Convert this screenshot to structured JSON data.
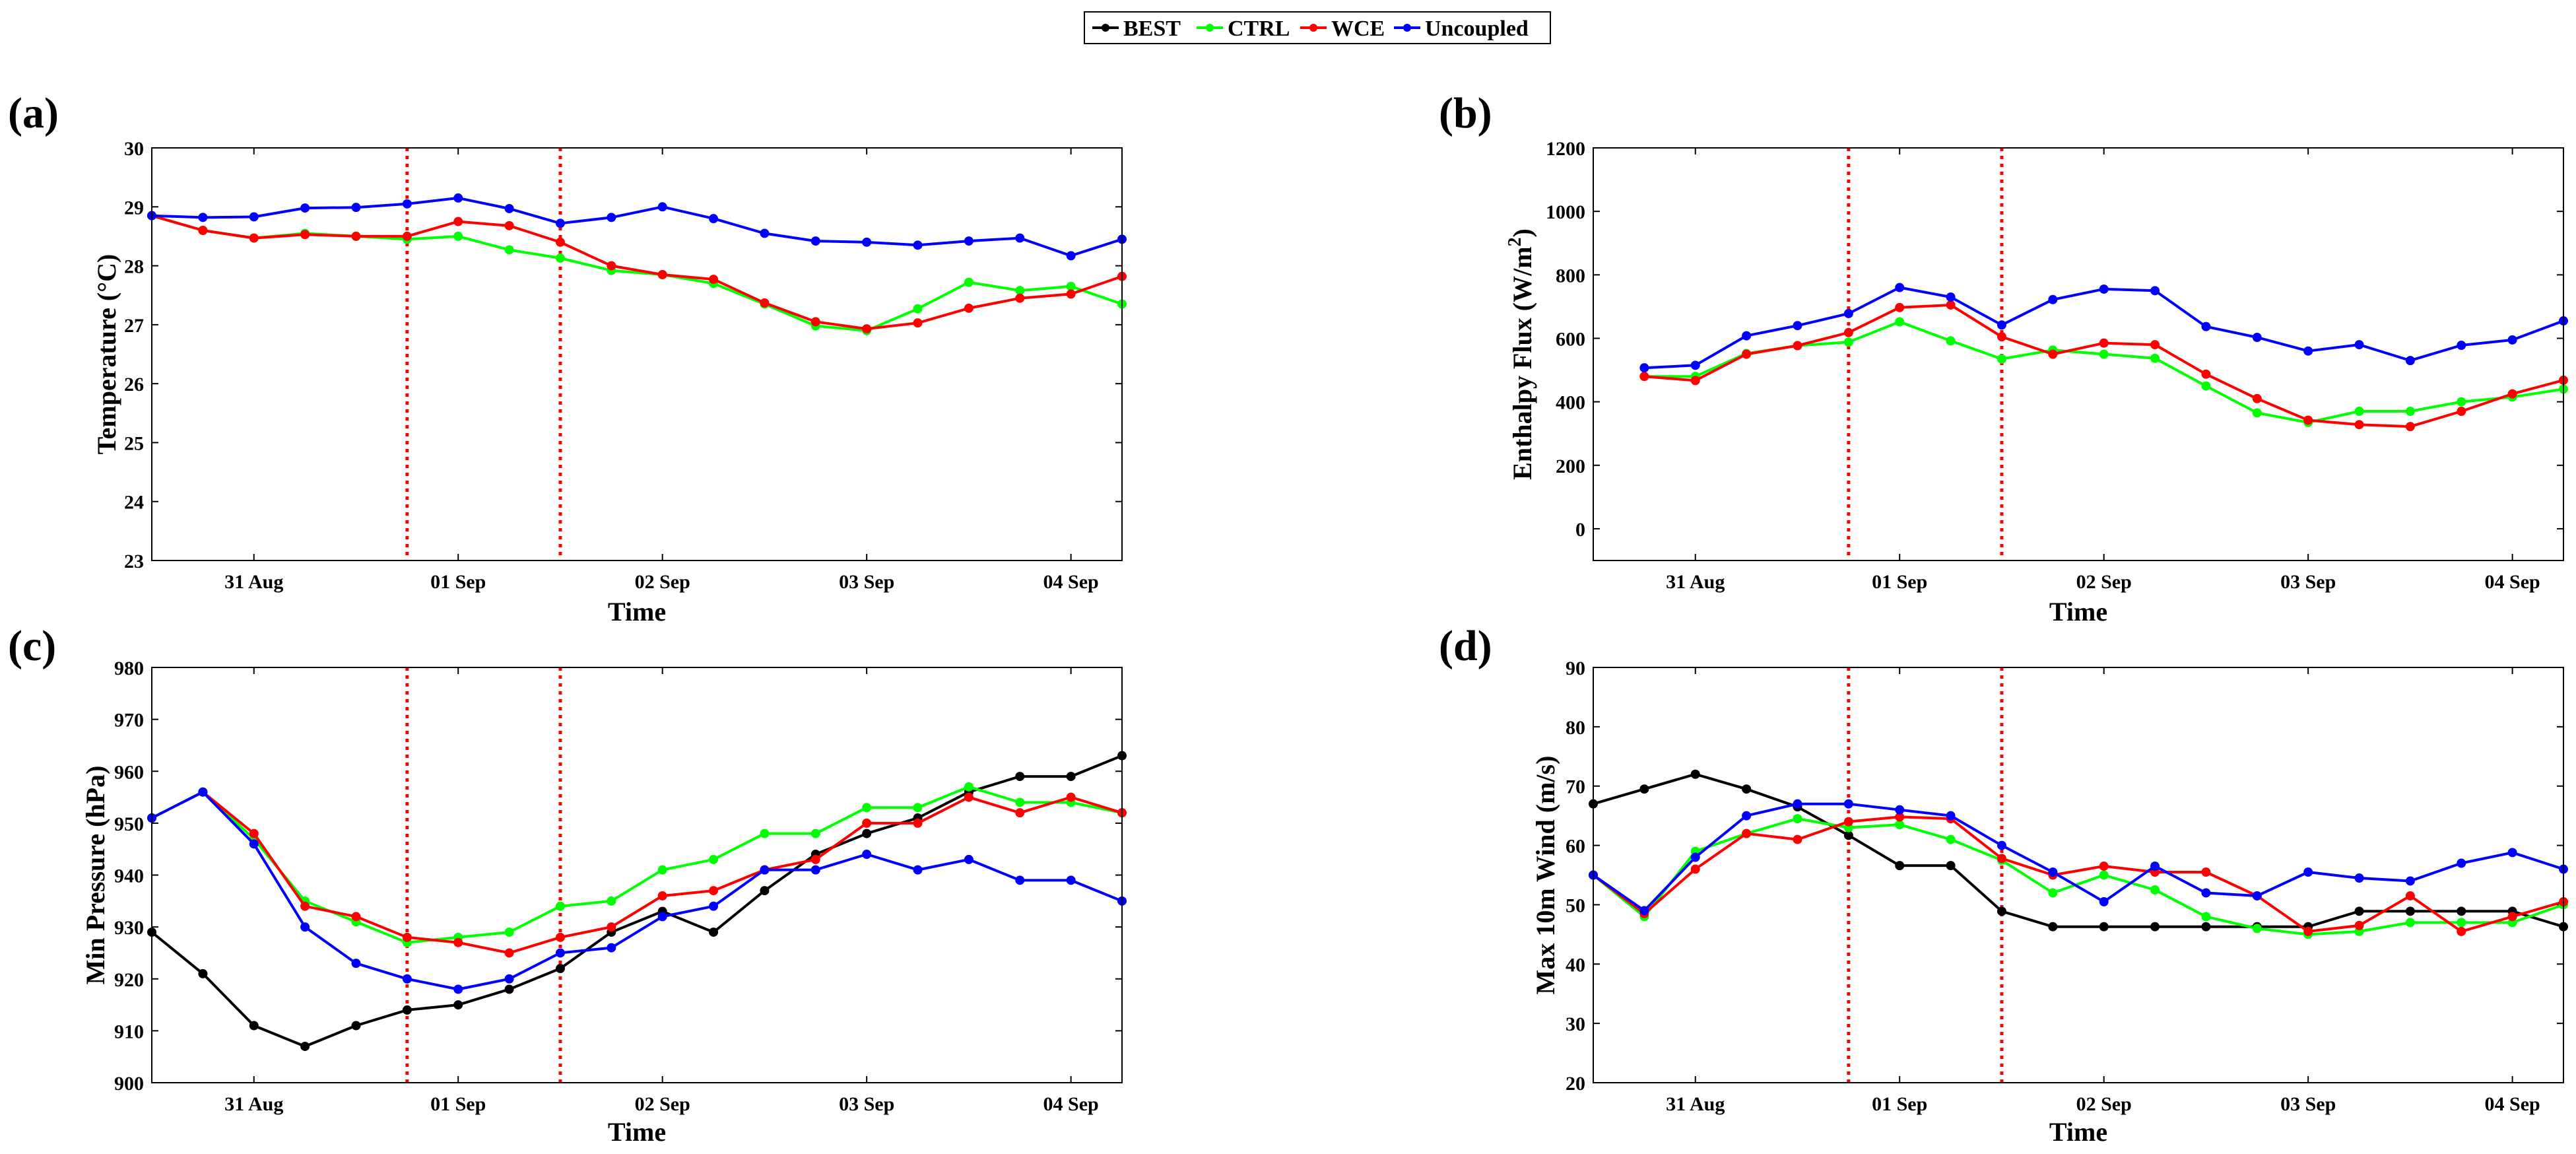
{
  "legend": {
    "entries": [
      {
        "name": "BEST",
        "color": "#000000"
      },
      {
        "name": "CTRL",
        "color": "#00ff00"
      },
      {
        "name": "WCE",
        "color": "#ff0000"
      },
      {
        "name": "Uncoupled",
        "color": "#0000ff"
      }
    ]
  },
  "chart_data": [
    {
      "type": "line",
      "panel_label": "(a)",
      "xlabel": "Time",
      "ylabel": "Temperature (°C)",
      "xlim": [
        -0.5,
        4.25
      ],
      "ylim": [
        23,
        30
      ],
      "yticks": [
        23,
        24,
        25,
        26,
        27,
        28,
        29,
        30
      ],
      "xticks": [
        {
          "value": 0,
          "label": "31 Aug"
        },
        {
          "value": 1,
          "label": "01 Sep"
        },
        {
          "value": 2,
          "label": "02 Sep"
        },
        {
          "value": 3,
          "label": "03 Sep"
        },
        {
          "value": 4,
          "label": "04 Sep"
        }
      ],
      "vlines": [
        0.75,
        1.5
      ],
      "x": [
        -0.5,
        -0.25,
        0,
        0.25,
        0.5,
        0.75,
        1,
        1.25,
        1.5,
        1.75,
        2,
        2.25,
        2.5,
        2.75,
        3,
        3.25,
        3.5,
        3.75,
        4,
        4.25
      ],
      "series": [
        {
          "name": "CTRL",
          "color": "#00ff00",
          "values": [
            28.85,
            28.6,
            28.47,
            28.55,
            28.5,
            28.45,
            28.5,
            28.27,
            28.13,
            27.92,
            27.85,
            27.7,
            27.35,
            26.98,
            26.9,
            27.27,
            27.72,
            27.58,
            27.65,
            27.35
          ]
        },
        {
          "name": "WCE",
          "color": "#ff0000",
          "values": [
            28.85,
            28.6,
            28.47,
            28.53,
            28.5,
            28.5,
            28.75,
            28.68,
            28.4,
            28.0,
            27.85,
            27.77,
            27.37,
            27.05,
            26.93,
            27.03,
            27.28,
            27.45,
            27.52,
            27.82
          ]
        },
        {
          "name": "Uncoupled",
          "color": "#0000ff",
          "values": [
            28.85,
            28.82,
            28.83,
            28.98,
            28.99,
            29.05,
            29.15,
            28.97,
            28.72,
            28.82,
            29.0,
            28.8,
            28.55,
            28.42,
            28.4,
            28.35,
            28.42,
            28.47,
            28.17,
            28.45
          ]
        }
      ]
    },
    {
      "type": "line",
      "panel_label": "(b)",
      "xlabel": "Time",
      "ylabel": "Enthalpy Flux (W/m",
      "ylabel_sup": "2",
      "ylabel_end": ")",
      "xlim": [
        -0.5,
        4.25
      ],
      "ylim": [
        -100,
        1200
      ],
      "yticks": [
        0,
        200,
        400,
        600,
        800,
        1000,
        1200
      ],
      "xticks": [
        {
          "value": 0,
          "label": "31 Aug"
        },
        {
          "value": 1,
          "label": "01 Sep"
        },
        {
          "value": 2,
          "label": "02 Sep"
        },
        {
          "value": 3,
          "label": "03 Sep"
        },
        {
          "value": 4,
          "label": "04 Sep"
        }
      ],
      "vlines": [
        0.75,
        1.5
      ],
      "x": [
        -0.25,
        0,
        0.25,
        0.5,
        0.75,
        1,
        1.25,
        1.5,
        1.75,
        2,
        2.25,
        2.5,
        2.75,
        3,
        3.25,
        3.5,
        3.75,
        4,
        4.25
      ],
      "series": [
        {
          "name": "CTRL",
          "color": "#00ff00",
          "values": [
            480,
            480,
            552,
            577,
            588,
            652,
            592,
            535,
            563,
            550,
            537,
            450,
            365,
            335,
            370,
            370,
            400,
            415,
            440
          ]
        },
        {
          "name": "WCE",
          "color": "#ff0000",
          "values": [
            480,
            467,
            550,
            577,
            618,
            697,
            705,
            605,
            550,
            585,
            580,
            487,
            410,
            342,
            328,
            322,
            370,
            425,
            468
          ]
        },
        {
          "name": "Uncoupled",
          "color": "#0000ff",
          "values": [
            507,
            515,
            608,
            640,
            678,
            760,
            730,
            642,
            722,
            755,
            750,
            637,
            603,
            560,
            580,
            530,
            578,
            595,
            655
          ]
        }
      ]
    },
    {
      "type": "line",
      "panel_label": "(c)",
      "xlabel": "Time",
      "ylabel": "Min Pressure (hPa)",
      "xlim": [
        -0.5,
        4.25
      ],
      "ylim": [
        900,
        980
      ],
      "yticks": [
        900,
        910,
        920,
        930,
        940,
        950,
        960,
        970,
        980
      ],
      "xticks": [
        {
          "value": 0,
          "label": "31 Aug"
        },
        {
          "value": 1,
          "label": "01 Sep"
        },
        {
          "value": 2,
          "label": "02 Sep"
        },
        {
          "value": 3,
          "label": "03 Sep"
        },
        {
          "value": 4,
          "label": "04 Sep"
        }
      ],
      "vlines": [
        0.75,
        1.5
      ],
      "x": [
        -0.5,
        -0.25,
        0,
        0.25,
        0.5,
        0.75,
        1,
        1.25,
        1.5,
        1.75,
        2,
        2.25,
        2.5,
        2.75,
        3,
        3.25,
        3.5,
        3.75,
        4,
        4.25
      ],
      "series": [
        {
          "name": "BEST",
          "color": "#000000",
          "values": [
            929,
            921,
            911,
            907,
            911,
            914,
            915,
            918,
            922,
            929,
            933,
            929,
            937,
            944,
            948,
            951,
            956,
            959,
            959,
            963
          ]
        },
        {
          "name": "CTRL",
          "color": "#00ff00",
          "values": [
            951,
            956,
            947,
            935,
            931,
            927,
            928,
            929,
            934,
            935,
            941,
            943,
            948,
            948,
            953,
            953,
            957,
            954,
            954,
            952
          ]
        },
        {
          "name": "WCE",
          "color": "#ff0000",
          "values": [
            951,
            956,
            948,
            934,
            932,
            928,
            927,
            925,
            928,
            930,
            936,
            937,
            941,
            943,
            950,
            950,
            955,
            952,
            955,
            952
          ]
        },
        {
          "name": "Uncoupled",
          "color": "#0000ff",
          "values": [
            951,
            956,
            946,
            930,
            923,
            920,
            918,
            920,
            925,
            926,
            932,
            934,
            941,
            941,
            944,
            941,
            943,
            939,
            939,
            935
          ]
        }
      ]
    },
    {
      "type": "line",
      "panel_label": "(d)",
      "xlabel": "Time",
      "ylabel": "Max 10m Wind (m/s)",
      "xlim": [
        -0.5,
        4.25
      ],
      "ylim": [
        20,
        90
      ],
      "yticks": [
        20,
        30,
        40,
        50,
        60,
        70,
        80,
        90
      ],
      "xticks": [
        {
          "value": 0,
          "label": "31 Aug"
        },
        {
          "value": 1,
          "label": "01 Sep"
        },
        {
          "value": 2,
          "label": "02 Sep"
        },
        {
          "value": 3,
          "label": "03 Sep"
        },
        {
          "value": 4,
          "label": "04 Sep"
        }
      ],
      "vlines": [
        0.75,
        1.5
      ],
      "x": [
        -0.5,
        -0.25,
        0,
        0.25,
        0.5,
        0.75,
        1,
        1.25,
        1.5,
        1.75,
        2,
        2.25,
        2.5,
        2.75,
        3,
        3.25,
        3.5,
        3.75,
        4,
        4.25
      ],
      "series": [
        {
          "name": "BEST",
          "color": "#000000",
          "values": [
            67,
            69.5,
            72,
            69.5,
            66.5,
            61.7,
            56.6,
            56.6,
            48.9,
            46.3,
            46.3,
            46.3,
            46.3,
            46.3,
            46.3,
            48.9,
            48.9,
            48.9,
            48.9,
            46.3
          ]
        },
        {
          "name": "CTRL",
          "color": "#00ff00",
          "values": [
            55,
            48,
            59,
            62,
            64.5,
            63,
            63.5,
            61,
            57.5,
            52,
            55,
            52.5,
            48,
            46,
            45,
            45.5,
            47,
            47,
            47,
            50
          ]
        },
        {
          "name": "WCE",
          "color": "#ff0000",
          "values": [
            55,
            48.5,
            56,
            62,
            61,
            64,
            64.8,
            64.5,
            57.8,
            55,
            56.5,
            55.5,
            55.5,
            51.5,
            45.5,
            46.5,
            51.5,
            45.5,
            48,
            50.5
          ]
        },
        {
          "name": "Uncoupled",
          "color": "#0000ff",
          "values": [
            55,
            49,
            58,
            65,
            67,
            67,
            66,
            65,
            60,
            55.5,
            50.5,
            56.5,
            52,
            51.5,
            55.5,
            54.5,
            54,
            57,
            58.8,
            56
          ]
        }
      ]
    }
  ]
}
